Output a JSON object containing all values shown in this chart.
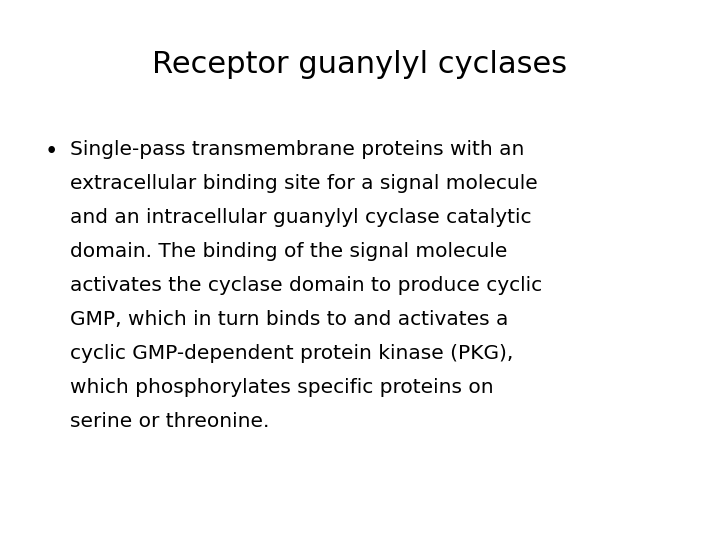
{
  "title": "Receptor guanylyl cyclases",
  "bullet_lines": [
    "Single-pass transmembrane proteins with an",
    "extracellular binding site for a signal molecule",
    "and an intracellular guanylyl cyclase catalytic",
    "domain. The binding of the signal molecule",
    "activates the cyclase domain to produce cyclic",
    "GMP, which in turn binds to and activates a",
    "cyclic GMP-dependent protein kinase (PKG),",
    "which phosphorylates specific proteins on",
    "serine or threonine."
  ],
  "background_color": "#ffffff",
  "text_color": "#000000",
  "title_fontsize": 22,
  "body_fontsize": 14.5,
  "title_font": "DejaVu Sans",
  "body_font": "DejaVu Sans"
}
